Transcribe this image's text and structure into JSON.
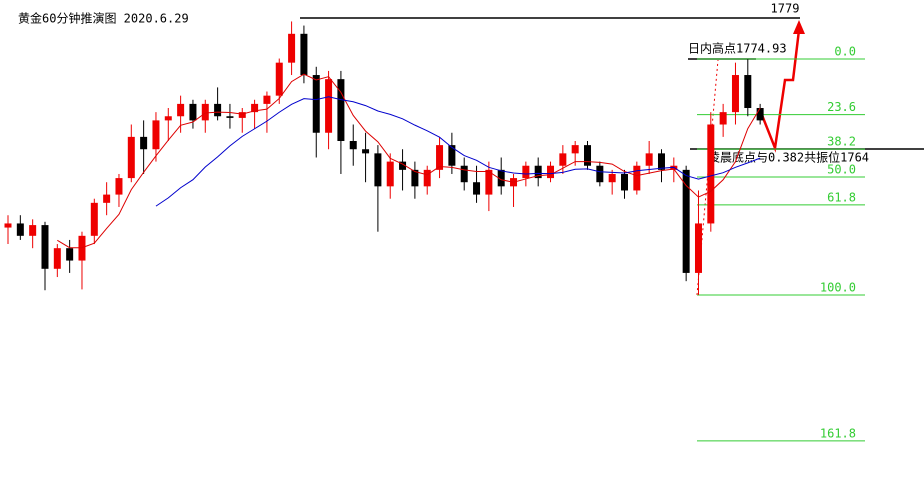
{
  "chart_data": {
    "type": "candlestick",
    "title": "黄金60分钟推演图 2020.6.29",
    "annotations": [
      "1779",
      "日内高点1774.93",
      "凌晨底点与0.382共振位1764"
    ],
    "ylim": [
      1723.4,
      1782.1
    ],
    "up_color": "#ee0000",
    "down_color": "#000000",
    "open": [
      1754.5,
      1755,
      1753.5,
      1754.8,
      1749.5,
      1752,
      1750.5,
      1753.5,
      1757.5,
      1758.5,
      1760.5,
      1765.5,
      1764,
      1767.5,
      1768,
      1769.5,
      1767.5,
      1769.5,
      1768,
      1767.8,
      1768.5,
      1769.5,
      1770.5,
      1774.5,
      1778,
      1773,
      1766,
      1772.5,
      1765,
      1764,
      1763.5,
      1759.5,
      1762.5,
      1761.5,
      1759.5,
      1761.5,
      1764.5,
      1762,
      1760,
      1758.5,
      1761.5,
      1759.5,
      1760.5,
      1762,
      1760.5,
      1762,
      1763.5,
      1764.5,
      1762,
      1760,
      1761,
      1759,
      1762,
      1763.5,
      1761.5,
      1761.5,
      1749,
      1755,
      1767,
      1768.5,
      1773,
      1769
    ],
    "high": [
      1756,
      1756,
      1755.5,
      1755.2,
      1752.5,
      1753,
      1754,
      1758,
      1760,
      1761,
      1767,
      1767.5,
      1768.5,
      1769,
      1770.5,
      1770,
      1770,
      1771.5,
      1769.5,
      1769,
      1770,
      1771,
      1775,
      1779.5,
      1779,
      1774,
      1773.5,
      1773.5,
      1767,
      1766,
      1764.5,
      1763.5,
      1764,
      1762.5,
      1762,
      1765.5,
      1766,
      1763,
      1762,
      1762.5,
      1763,
      1761,
      1762.5,
      1763,
      1762.5,
      1764.5,
      1765,
      1765,
      1762.5,
      1761.5,
      1761.5,
      1762.5,
      1765,
      1764,
      1763,
      1762,
      1759,
      1768.5,
      1769.5,
      1774.5,
      1774.93,
      1769.5
    ],
    "low": [
      1752.5,
      1753,
      1752,
      1746.9,
      1748.5,
      1749,
      1747,
      1752.5,
      1756,
      1757,
      1760,
      1761,
      1762.5,
      1765,
      1766,
      1766.5,
      1766,
      1767.5,
      1766.5,
      1766,
      1766.5,
      1766,
      1769.5,
      1773,
      1772,
      1763,
      1764,
      1761,
      1762,
      1760,
      1754,
      1758,
      1759,
      1758,
      1758.5,
      1760.5,
      1761,
      1759,
      1757.5,
      1756.5,
      1758.5,
      1757,
      1759.5,
      1759.5,
      1760,
      1761,
      1762,
      1761.5,
      1759.5,
      1758.5,
      1758,
      1758.5,
      1761,
      1760,
      1760,
      1748,
      1746.3,
      1754,
      1765.5,
      1767,
      1768,
      1767
    ],
    "close": [
      1755,
      1753.5,
      1754.8,
      1749.5,
      1752,
      1750.5,
      1753.5,
      1757.5,
      1758.5,
      1760.5,
      1765.5,
      1764,
      1767.5,
      1768,
      1769.5,
      1767.5,
      1769.5,
      1768,
      1767.8,
      1768.5,
      1769.5,
      1770.5,
      1774.5,
      1778,
      1773,
      1766,
      1772.5,
      1765,
      1764,
      1763.5,
      1759.5,
      1762.5,
      1761.5,
      1759.5,
      1761.5,
      1764.5,
      1762,
      1760,
      1758.5,
      1761.5,
      1759.5,
      1760.5,
      1762,
      1760.5,
      1762,
      1763.5,
      1764.5,
      1762,
      1760,
      1761,
      1759,
      1762,
      1763.5,
      1761.5,
      1762,
      1749,
      1755,
      1767,
      1768.5,
      1773,
      1769,
      1767.5
    ],
    "moving_averages": [
      {
        "period": 5,
        "color": "#dd0000"
      },
      {
        "period": 13,
        "color": "#0000cc"
      }
    ],
    "y2lim": [
      180.1,
      -25
    ],
    "y2ticks": [
      {
        "value": 0,
        "label": "0.0"
      },
      23.6,
      38.2,
      {
        "value": 50,
        "label": "50.0"
      },
      61.8,
      {
        "value": 100,
        "label": "100.0"
      },
      161.8
    ],
    "fib_color": "#33cc33"
  }
}
